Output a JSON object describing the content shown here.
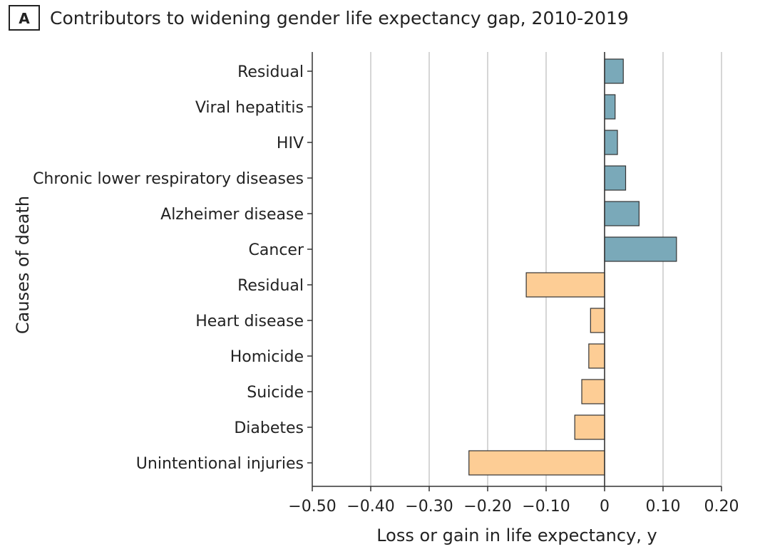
{
  "panel_letter": "A",
  "chart_data": {
    "type": "bar",
    "orientation": "horizontal",
    "title": "Contributors to widening gender life expectancy gap, 2010-2019",
    "xlabel": "Loss or gain in life expectancy, y",
    "ylabel": "Causes of death",
    "xlim": [
      -0.5,
      0.2
    ],
    "xticks": [
      -0.5,
      -0.4,
      -0.3,
      -0.2,
      -0.1,
      0,
      0.1,
      0.2
    ],
    "xtick_labels": [
      "−0.50",
      "−0.40",
      "−0.30",
      "−0.20",
      "−0.10",
      "0",
      "0.10",
      "0.20"
    ],
    "grid": "vertical",
    "categories": [
      "Residual",
      "Viral hepatitis",
      "HIV",
      "Chronic lower respiratory diseases",
      "Alzheimer disease",
      "Cancer",
      "Residual",
      "Heart disease",
      "Homicide",
      "Suicide",
      "Diabetes",
      "Unintentional injuries"
    ],
    "values": [
      0.032,
      0.018,
      0.022,
      0.036,
      0.059,
      0.123,
      -0.134,
      -0.024,
      -0.027,
      -0.039,
      -0.051,
      -0.232
    ],
    "colors": {
      "positive": "#7aa9b9",
      "negative": "#fdcd95"
    }
  }
}
